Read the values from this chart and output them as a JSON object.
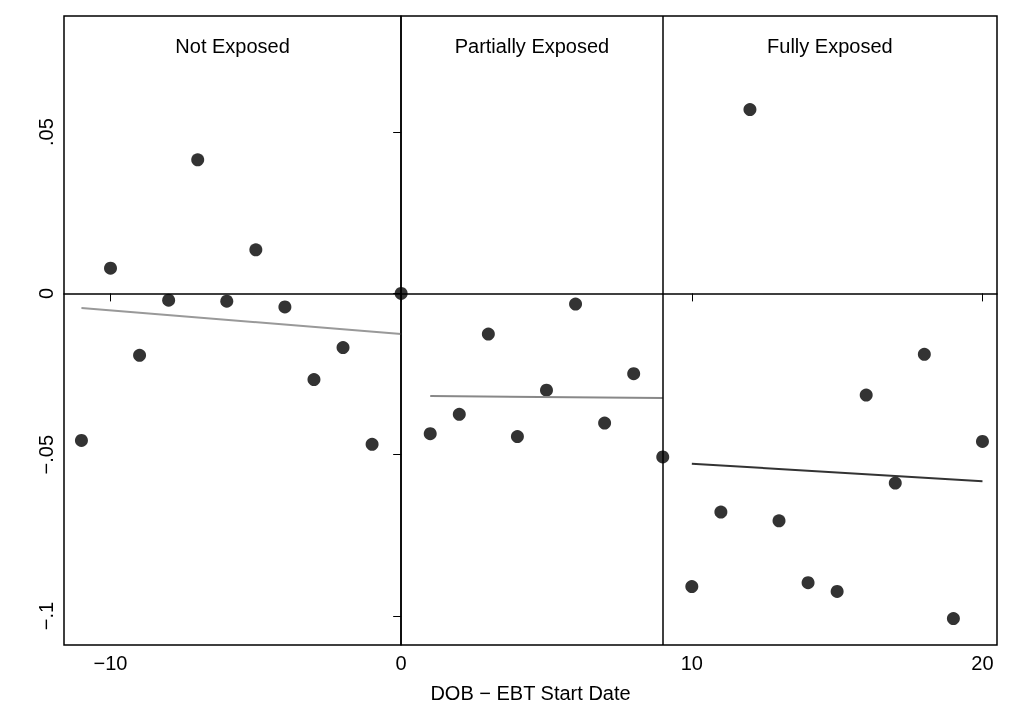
{
  "chart_data": {
    "type": "scatter",
    "xlabel": "DOB − EBT Start Date",
    "xlim": [
      -11.6,
      20.5
    ],
    "ylim": [
      -0.109,
      0.086
    ],
    "xticks": [
      {
        "value": -10,
        "label": "−10"
      },
      0,
      10,
      20
    ],
    "yticks": [
      {
        "value": -0.1,
        "label": "−.1"
      },
      {
        "value": -0.05,
        "label": "−.05"
      },
      0,
      {
        "value": 0.05,
        "label": ".05"
      }
    ],
    "series": [
      {
        "marker": "circle",
        "color": "#000000",
        "x": [
          -11,
          -10,
          -9,
          -8,
          -7,
          -6,
          -5,
          -4,
          -3,
          -2,
          -1,
          0,
          1,
          2,
          3,
          4,
          5,
          6,
          7,
          8,
          9,
          10,
          11,
          12,
          13,
          14,
          15,
          16,
          17,
          18,
          19,
          20
        ],
        "values": [
          -0.0456,
          0.0078,
          -0.0192,
          -0.0021,
          0.0414,
          -0.0024,
          0.0135,
          -0.0042,
          -0.0267,
          -0.0168,
          -0.0468,
          0,
          -0.0435,
          -0.0375,
          -0.0126,
          -0.0444,
          -0.03,
          -0.0033,
          -0.0402,
          -0.0249,
          -0.0507,
          -0.0909,
          -0.0678,
          0.057,
          -0.0705,
          -0.0897,
          -0.0924,
          -0.0315,
          -0.0588,
          -0.0189,
          -0.1008,
          -0.0459
        ]
      },
      {
        "type": "line",
        "color": "#999999",
        "x": [
          -11,
          0
        ],
        "values": [
          -0.0045,
          -0.0126
        ]
      },
      {
        "type": "line",
        "color": "#888888",
        "x": [
          1,
          9
        ],
        "values": [
          -0.0318,
          -0.0324
        ]
      },
      {
        "type": "line",
        "color": "#333333",
        "x": [
          10,
          20
        ],
        "values": [
          -0.0528,
          -0.0582
        ]
      }
    ],
    "ref_lines": [
      {
        "axis": "x",
        "value": 0,
        "color": "#000000"
      },
      {
        "axis": "x",
        "value": 9,
        "color": "#000000"
      }
    ],
    "annotations": [
      "Not Exposed",
      "Partially Exposed",
      "Fully Exposed"
    ]
  }
}
